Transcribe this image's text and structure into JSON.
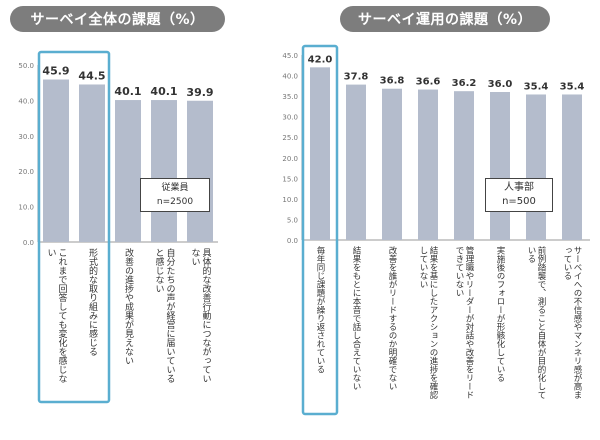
{
  "chart_data": [
    {
      "type": "bar",
      "title": "サーベイ全体の課題（%）",
      "box_label_main": "従業員",
      "box_label_sub": "n=2500",
      "ylim": [
        0,
        50
      ],
      "yticks": [
        "0.0",
        "10.0",
        "20.0",
        "30.0",
        "40.0",
        "50.0"
      ],
      "categories": [
        "これまで回答しても変化を感じない",
        "形式的な取り組みに感じる",
        "改善の進捗や成果が見えない",
        "自分たちの声が経営に届いていると感じない",
        "具体的な改善行動につながっていない"
      ],
      "values": [
        45.9,
        44.5,
        40.1,
        40.1,
        39.9
      ],
      "value_labels": [
        "45.9",
        "44.5",
        "40.1",
        "40.1",
        "39.9"
      ],
      "highlight": [
        0,
        1
      ],
      "colors": {
        "bar": "#b4bccc",
        "highlight_border": "#5aaed0",
        "axis": "#999999"
      }
    },
    {
      "type": "bar",
      "title": "サーベイ運用の課題（%）",
      "box_label_main": "人事部",
      "box_label_sub": "n=500",
      "ylim": [
        0,
        45
      ],
      "yticks": [
        "0.0",
        "5.0",
        "10.0",
        "15.0",
        "20.0",
        "25.0",
        "30.0",
        "35.0",
        "40.0",
        "45.0"
      ],
      "categories": [
        "毎年同じ課題が繰り返されている",
        "結果をもとに本音で話し合えていない",
        "改善を誰がリードするのか明確でない",
        "結果を基にしたアクションの進捗を確認していない",
        "管理職やリーダーが対話や改善をリードできていない",
        "実施後のフォローが形骸化している",
        "前例踏襲で、測ること自体が目的化している",
        "サーベイへの不信感やマンネリ感が高まっている"
      ],
      "values": [
        42.0,
        37.8,
        36.8,
        36.6,
        36.2,
        36.0,
        35.4,
        35.4
      ],
      "value_labels": [
        "42.0",
        "37.8",
        "36.8",
        "36.6",
        "36.2",
        "36.0",
        "35.4",
        "35.4"
      ],
      "highlight": [
        0
      ],
      "colors": {
        "bar": "#b4bccc",
        "highlight_border": "#5aaed0",
        "axis": "#999999"
      }
    }
  ]
}
